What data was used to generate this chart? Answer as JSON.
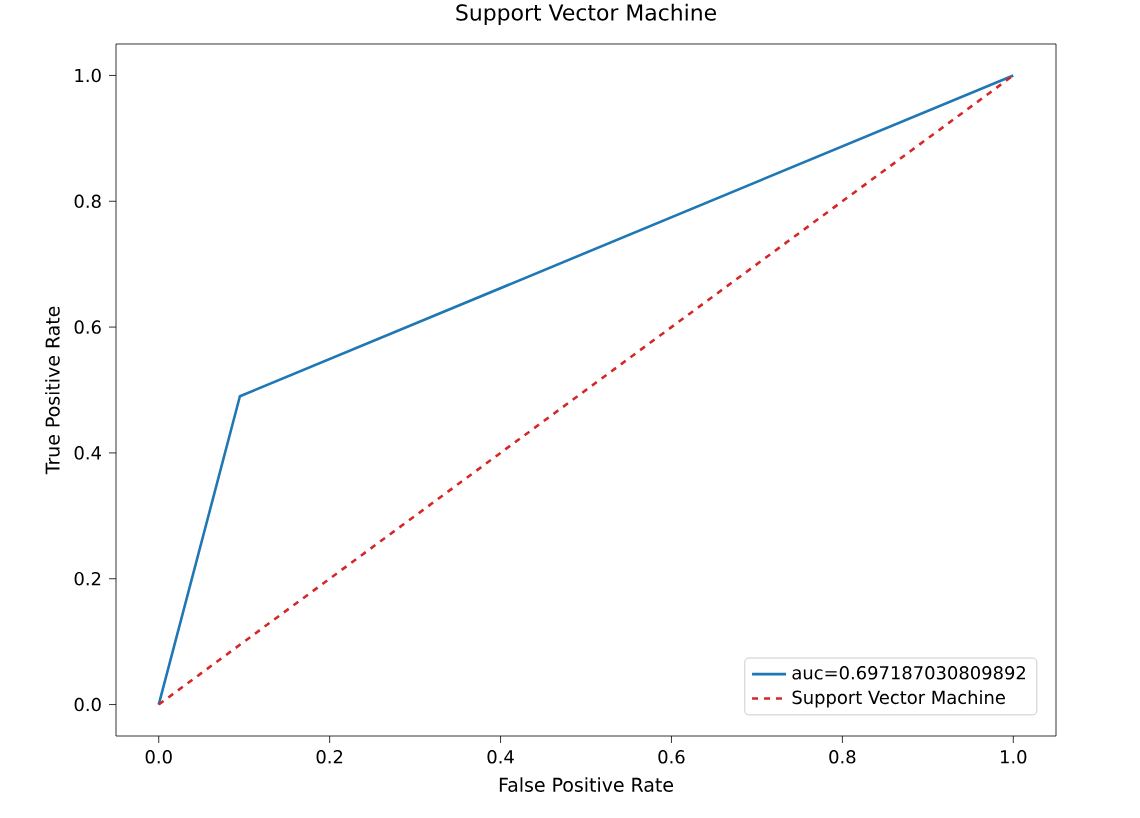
{
  "chart_data": {
    "type": "line",
    "title": "Support Vector Machine",
    "xlabel": "False Positive Rate",
    "ylabel": "True Positive Rate",
    "series": [
      {
        "name": "auc=0.697187030809892",
        "color": "#1f77b4",
        "x": [
          0,
          0.095,
          1
        ],
        "values": [
          0,
          0.49,
          1
        ]
      },
      {
        "name": "Support Vector Machine",
        "color": "#d62728",
        "x": [
          0,
          1
        ],
        "values": [
          0,
          1
        ],
        "line_style": "dashed"
      }
    ],
    "xlim": [
      -0.05,
      1.05
    ],
    "ylim": [
      -0.05,
      1.05
    ],
    "xticks": [
      {
        "value": 0,
        "label": "0.0"
      },
      0.2,
      0.4,
      0.6,
      0.8,
      {
        "value": 1,
        "label": "1.0"
      }
    ],
    "yticks": [
      {
        "value": 0,
        "label": "0.0"
      },
      0.2,
      0.4,
      0.6,
      0.8,
      {
        "value": 1,
        "label": "1.0"
      }
    ],
    "legend": "bottom right",
    "grid": false
  }
}
